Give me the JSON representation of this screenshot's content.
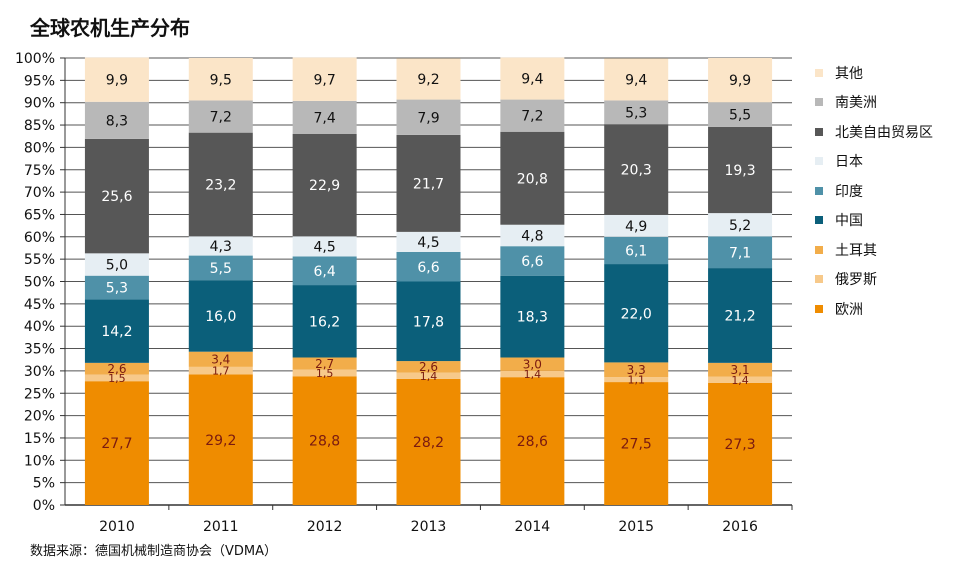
{
  "chart_data": {
    "type": "bar",
    "stacked": true,
    "percent": true,
    "title": "全球农机生产分布",
    "source": "数据来源：德国机械制造商协会（VDMA）",
    "categories": [
      "2010",
      "2011",
      "2012",
      "2013",
      "2014",
      "2015",
      "2016"
    ],
    "y_ticks": [
      "0%",
      "5%",
      "10%",
      "15%",
      "20%",
      "25%",
      "30%",
      "35%",
      "40%",
      "45%",
      "50%",
      "55%",
      "60%",
      "65%",
      "70%",
      "75%",
      "80%",
      "85%",
      "90%",
      "95%",
      "100%"
    ],
    "ylim": [
      0,
      100
    ],
    "series": [
      {
        "name": "欧洲",
        "color": "#ef8c00",
        "label_color": "#7a1a10",
        "values": [
          27.7,
          29.2,
          28.8,
          28.2,
          28.6,
          27.5,
          27.3
        ],
        "labels": [
          "27,7",
          "29,2",
          "28,8",
          "28,2",
          "28,6",
          "27,5",
          "27,3"
        ]
      },
      {
        "name": "俄罗斯",
        "color": "#f7c98a",
        "label_color": "#7a1a10",
        "values": [
          1.5,
          1.7,
          1.5,
          1.4,
          1.4,
          1.1,
          1.4
        ],
        "labels": [
          "1,5",
          "1,7",
          "1,5",
          "1,4",
          "1,4",
          "1,1",
          "1,4"
        ]
      },
      {
        "name": "土耳其",
        "color": "#f2ad4a",
        "label_color": "#7a1a10",
        "values": [
          2.6,
          3.4,
          2.7,
          2.6,
          3.0,
          3.3,
          3.1
        ],
        "labels": [
          "2,6",
          "3,4",
          "2,7",
          "2,6",
          "3,0",
          "3,3",
          "3,1"
        ]
      },
      {
        "name": "中国",
        "color": "#0b5f7a",
        "label_color": "#ffffff",
        "values": [
          14.2,
          16.0,
          16.2,
          17.8,
          18.3,
          22.0,
          21.2
        ],
        "labels": [
          "14,2",
          "16,0",
          "16,2",
          "17,8",
          "18,3",
          "22,0",
          "21,2"
        ]
      },
      {
        "name": "印度",
        "color": "#4f91a8",
        "label_color": "#ffffff",
        "values": [
          5.3,
          5.5,
          6.4,
          6.6,
          6.6,
          6.1,
          7.1
        ],
        "labels": [
          "5,3",
          "5,5",
          "6,4",
          "6,6",
          "6,6",
          "6,1",
          "7,1"
        ]
      },
      {
        "name": "日本",
        "color": "#e6eef3",
        "label_color": "#111111",
        "values": [
          5.0,
          4.3,
          4.5,
          4.5,
          4.8,
          4.9,
          5.2
        ],
        "labels": [
          "5,0",
          "4,3",
          "4,5",
          "4,5",
          "4,8",
          "4,9",
          "5,2"
        ]
      },
      {
        "name": "北美自由贸易区",
        "color": "#575757",
        "label_color": "#ffffff",
        "values": [
          25.6,
          23.2,
          22.9,
          21.7,
          20.8,
          20.3,
          19.3
        ],
        "labels": [
          "25,6",
          "23,2",
          "22,9",
          "21,7",
          "20,8",
          "20,3",
          "19,3"
        ]
      },
      {
        "name": "南美洲",
        "color": "#b8b8b8",
        "label_color": "#111111",
        "values": [
          8.3,
          7.2,
          7.4,
          7.9,
          7.2,
          5.3,
          5.5
        ],
        "labels": [
          "8,3",
          "7,2",
          "7,4",
          "7,9",
          "7,2",
          "5,3",
          "5,5"
        ]
      },
      {
        "name": "其他",
        "color": "#fbe5c8",
        "label_color": "#111111",
        "values": [
          9.9,
          9.5,
          9.7,
          9.2,
          9.4,
          9.4,
          9.9
        ],
        "labels": [
          "9,9",
          "9,5",
          "9,7",
          "9,2",
          "9,4",
          "9,4",
          "9,9"
        ]
      }
    ],
    "legend_order": [
      "其他",
      "南美洲",
      "北美自由贸易区",
      "日本",
      "印度",
      "中国",
      "土耳其",
      "俄罗斯",
      "欧洲"
    ]
  }
}
